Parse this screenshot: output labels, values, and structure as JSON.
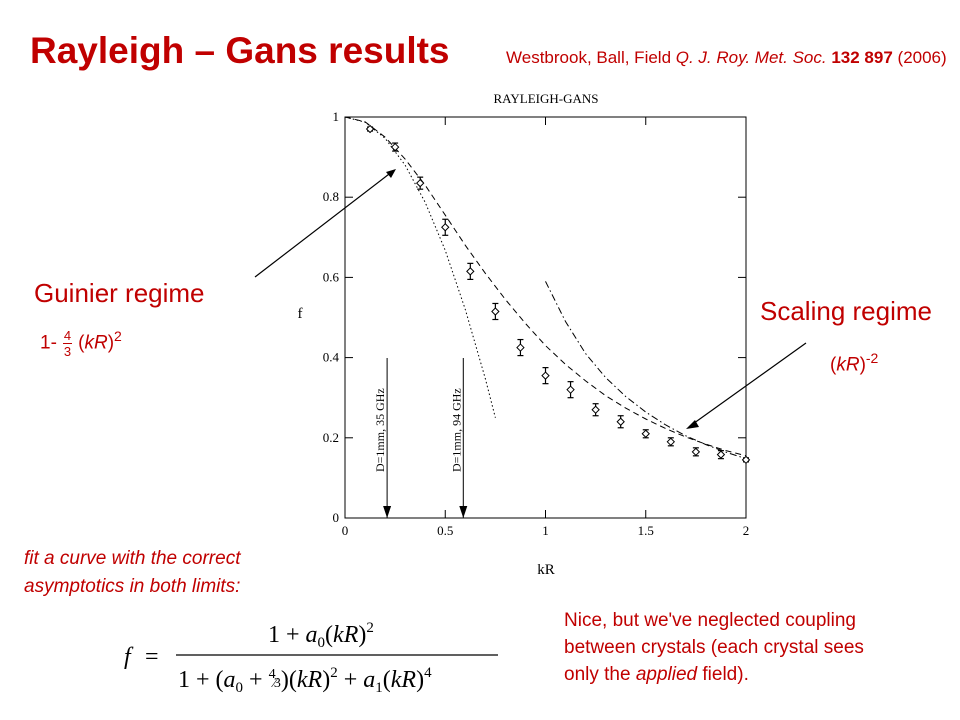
{
  "slide": {
    "title": "Rayleigh – Gans results",
    "citation": {
      "authors": "Westbrook, Ball, Field",
      "journal": "Q. J. Roy. Met. Soc.",
      "volume": "132 897",
      "year": "(2006)"
    },
    "guinier": {
      "label": "Guinier regime",
      "expr_prefix": "1-",
      "expr_num": "4",
      "expr_den": "3",
      "expr_var": "kR",
      "expr_paren_open": "(",
      "expr_paren_close": ")",
      "expr_exp": "2"
    },
    "scaling": {
      "label": "Scaling regime",
      "expr_paren_open": "(",
      "expr_var": "kR",
      "expr_paren_close": ")",
      "expr_exp": "-2"
    },
    "fit_note": [
      "fit a curve with the correct",
      "asymptotics in both limits:"
    ],
    "neglect_note": {
      "line1": "Nice, but we've neglected coupling",
      "line2": "between crystals (each crystal sees",
      "line3_pre": "only the",
      "line3_em": "applied",
      "line3_post": "field)."
    },
    "colors": {
      "accent": "#c00000",
      "ink": "#000000"
    }
  },
  "chart_data": {
    "type": "scatter",
    "title": "RAYLEIGH-GANS",
    "xlabel": "kR",
    "ylabel": "f",
    "xlim": [
      0,
      2
    ],
    "ylim": [
      0,
      1
    ],
    "x_ticks": [
      0,
      0.5,
      1,
      1.5,
      2
    ],
    "x_tick_labels": [
      "0",
      "0.5",
      "1",
      "1.5",
      "2"
    ],
    "y_ticks": [
      0,
      0.2,
      0.4,
      0.6,
      0.8,
      1
    ],
    "y_tick_labels": [
      "0",
      "0.2",
      "0.4",
      "0.6",
      "0.8",
      "1"
    ],
    "grid": false,
    "legend": "none",
    "series": [
      {
        "style": "points-with-errorbars",
        "x": [
          0.125,
          0.25,
          0.375,
          0.5,
          0.625,
          0.75,
          0.875,
          1.0,
          1.125,
          1.25,
          1.375,
          1.5,
          1.625,
          1.75,
          1.875,
          2.0
        ],
        "y": [
          0.97,
          0.925,
          0.835,
          0.725,
          0.615,
          0.515,
          0.425,
          0.355,
          0.32,
          0.27,
          0.24,
          0.21,
          0.19,
          0.165,
          0.158,
          0.145
        ],
        "err": [
          0.005,
          0.01,
          0.015,
          0.02,
          0.02,
          0.02,
          0.02,
          0.02,
          0.02,
          0.015,
          0.015,
          0.01,
          0.01,
          0.01,
          0.01,
          0.005
        ]
      },
      {
        "style": "dashed",
        "x": [
          0,
          0.1,
          0.2,
          0.3,
          0.4,
          0.5,
          0.6,
          0.7,
          0.8,
          0.9,
          1.0,
          1.1,
          1.2,
          1.3,
          1.4,
          1.5,
          1.6,
          1.7,
          1.8,
          1.9,
          2.0
        ],
        "y": [
          1.0,
          0.988,
          0.95,
          0.895,
          0.83,
          0.755,
          0.68,
          0.61,
          0.545,
          0.485,
          0.43,
          0.383,
          0.342,
          0.305,
          0.274,
          0.247,
          0.223,
          0.202,
          0.184,
          0.168,
          0.155
        ]
      },
      {
        "style": "dotted",
        "x": [
          0,
          0.1,
          0.2,
          0.3,
          0.4,
          0.5,
          0.6,
          0.7,
          0.75
        ],
        "y": [
          1.0,
          0.987,
          0.947,
          0.88,
          0.787,
          0.667,
          0.52,
          0.347,
          0.25
        ]
      },
      {
        "style": "dash-dot",
        "x": [
          1.0,
          1.1,
          1.2,
          1.3,
          1.4,
          1.5,
          1.6,
          1.7,
          1.8,
          1.9,
          2.0
        ],
        "y": [
          0.59,
          0.49,
          0.41,
          0.35,
          0.303,
          0.264,
          0.232,
          0.205,
          0.183,
          0.164,
          0.148
        ]
      }
    ],
    "markers": [
      {
        "x": 0.21,
        "label": "D=1mm, 35 GHz"
      },
      {
        "x": 0.59,
        "label": "D=1mm, 94 GHz"
      }
    ]
  }
}
